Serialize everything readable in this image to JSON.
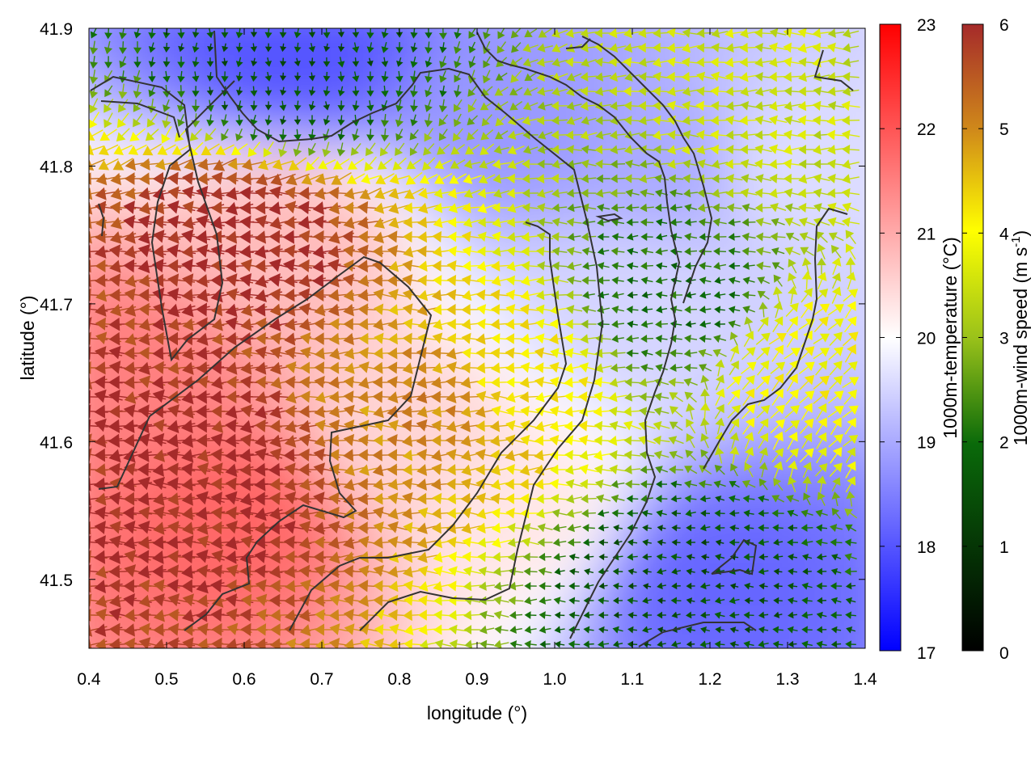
{
  "chart_data": {
    "type": "heatmap",
    "title": "",
    "xlabel": "longitude (°)",
    "ylabel": "latitude (°)",
    "xlim": [
      0.4,
      1.4
    ],
    "ylim": [
      41.45,
      41.9
    ],
    "x_ticks": [
      "0.4",
      "0.5",
      "0.6",
      "0.7",
      "0.8",
      "0.9",
      "1.0",
      "1.1",
      "1.2",
      "1.3",
      "1.4"
    ],
    "y_ticks": [
      "41.5",
      "41.6",
      "41.7",
      "41.8",
      "41.9"
    ],
    "y_tick_values": [
      41.5,
      41.6,
      41.7,
      41.8,
      41.9
    ],
    "temperature_colorbar": {
      "label": "1000m-temperature (°C)",
      "range": [
        17,
        23
      ],
      "ticks": [
        "17",
        "18",
        "19",
        "20",
        "21",
        "22",
        "23"
      ],
      "colors": [
        "#0000ff",
        "#ffffff",
        "#ff0000"
      ]
    },
    "wind_colorbar": {
      "label": "1000m-wind speed (m s",
      "label_sup": "-1",
      "label_end": ")",
      "range": [
        0,
        6
      ],
      "ticks": [
        "0",
        "1",
        "2",
        "3",
        "4",
        "5",
        "6"
      ],
      "colors": [
        "#000000",
        "#0a6a0a",
        "#9ac21a",
        "#ffff00",
        "#d08a1a",
        "#a52a2a"
      ]
    },
    "temperature_field_samples": [
      {
        "lon": 0.45,
        "lat": 41.65,
        "t": 21.5
      },
      {
        "lon": 0.6,
        "lat": 41.55,
        "t": 21.8
      },
      {
        "lon": 0.65,
        "lat": 41.75,
        "t": 20.8
      },
      {
        "lon": 0.8,
        "lat": 41.6,
        "t": 20.5
      },
      {
        "lon": 0.95,
        "lat": 41.55,
        "t": 20.3
      },
      {
        "lon": 1.1,
        "lat": 41.7,
        "t": 19.5
      },
      {
        "lon": 1.2,
        "lat": 41.5,
        "t": 18.2
      },
      {
        "lon": 1.15,
        "lat": 41.8,
        "t": 19.0
      },
      {
        "lon": 0.67,
        "lat": 41.88,
        "t": 18.0
      },
      {
        "lon": 0.95,
        "lat": 41.83,
        "t": 18.8
      },
      {
        "lon": 1.3,
        "lat": 41.8,
        "t": 19.6
      }
    ],
    "wind_field_samples": [
      {
        "lon": 0.6,
        "lat": 41.75,
        "speed": 6.0,
        "dir": "west"
      },
      {
        "lon": 0.55,
        "lat": 41.58,
        "speed": 6.0,
        "dir": "west"
      },
      {
        "lon": 0.85,
        "lat": 41.63,
        "speed": 5.0,
        "dir": "west"
      },
      {
        "lon": 0.95,
        "lat": 41.65,
        "speed": 4.2,
        "dir": "west"
      },
      {
        "lon": 1.15,
        "lat": 41.7,
        "speed": 2.0,
        "dir": "west"
      },
      {
        "lon": 1.18,
        "lat": 41.5,
        "speed": 1.5,
        "dir": "west"
      },
      {
        "lon": 1.32,
        "lat": 41.65,
        "speed": 4.0,
        "dir": "north-east"
      },
      {
        "lon": 0.65,
        "lat": 41.87,
        "speed": 1.5,
        "dir": "south"
      },
      {
        "lon": 1.3,
        "lat": 41.85,
        "speed": 3.5,
        "dir": "west"
      }
    ]
  }
}
